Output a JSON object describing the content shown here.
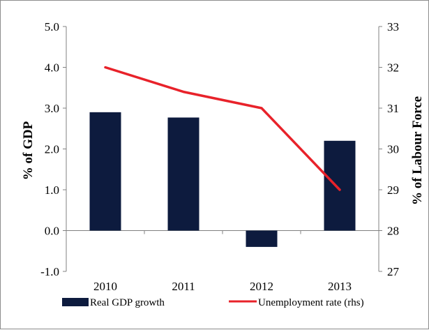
{
  "chart_data": {
    "type": "bar",
    "categories": [
      "2010",
      "2011",
      "2012",
      "2013"
    ],
    "series": [
      {
        "name": "Real GDP growth",
        "kind": "bar",
        "axis": "left",
        "color": "#0d1b3e",
        "values": [
          2.9,
          2.77,
          -0.4,
          2.2
        ]
      },
      {
        "name": "Unemployment rate (rhs)",
        "kind": "line",
        "axis": "right",
        "color": "#e8222a",
        "values": [
          32.0,
          31.4,
          31.0,
          29.0
        ]
      }
    ],
    "ylabel": "% of GDP",
    "ylabel_right": "% of Labour Force",
    "ylim": [
      -1.0,
      5.0
    ],
    "ylim_right": [
      27,
      33
    ],
    "yticks": [
      "5.0",
      "4.0",
      "3.0",
      "2.0",
      "1.0",
      "0.0",
      "-1.0"
    ],
    "yticks_right": [
      "33",
      "32",
      "31",
      "30",
      "29",
      "28",
      "27"
    ],
    "grid": false,
    "legend_position": "bottom"
  }
}
